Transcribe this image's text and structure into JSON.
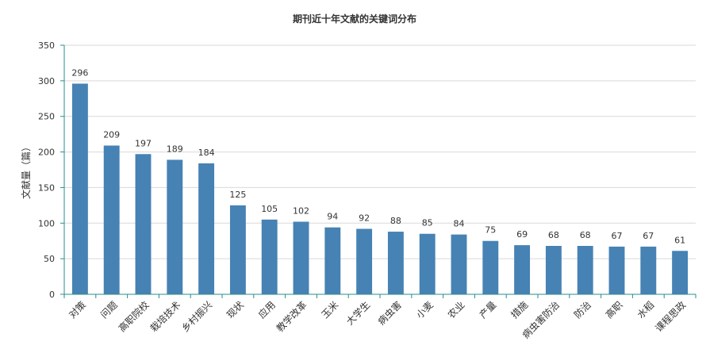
{
  "chart_data": {
    "type": "bar",
    "title": "期刊近十年文献的关键词分布",
    "xlabel": "",
    "ylabel": "文献量（篇）",
    "ylim": [
      0,
      350
    ],
    "yticks": [
      0,
      50,
      100,
      150,
      200,
      250,
      300,
      350
    ],
    "grid": true,
    "categories": [
      "对策",
      "问题",
      "高职院校",
      "栽培技术",
      "乡村振兴",
      "现状",
      "应用",
      "教学改革",
      "玉米",
      "大学生",
      "病虫害",
      "小麦",
      "农业",
      "产量",
      "措施",
      "病虫害防治",
      "防治",
      "高职",
      "水稻",
      "课程思政"
    ],
    "values": [
      296,
      209,
      197,
      189,
      184,
      125,
      105,
      102,
      94,
      92,
      88,
      85,
      84,
      75,
      69,
      68,
      68,
      67,
      67,
      61
    ],
    "bar_color": "#4682b4",
    "axis_color": "#2a8c8c",
    "grid_color": "#d9d9d9"
  }
}
